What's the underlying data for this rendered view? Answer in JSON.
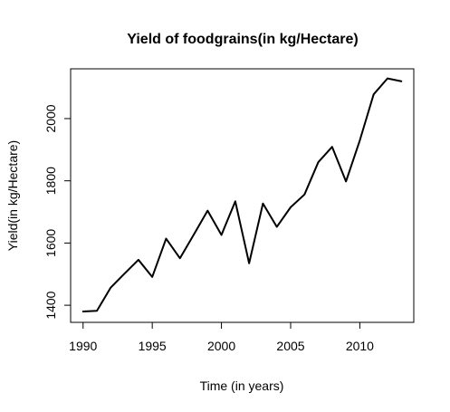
{
  "chart_data": {
    "type": "line",
    "title": "Yield of foodgrains(in kg/Hectare)",
    "xlabel": "Time (in years)",
    "ylabel": "Yield(in kg/Hectare)",
    "xlim": [
      1989.1,
      2013.9
    ],
    "ylim": [
      1345,
      2160
    ],
    "xticks": [
      1990,
      1995,
      2000,
      2005,
      2010
    ],
    "yticks": [
      1400,
      1600,
      1800,
      2000
    ],
    "grid": false,
    "legend": "none",
    "series": [
      {
        "color": "#000000",
        "x": [
          1990,
          1991,
          1992,
          1993,
          1994,
          1995,
          1996,
          1997,
          1998,
          1999,
          2000,
          2001,
          2002,
          2003,
          2004,
          2005,
          2006,
          2007,
          2008,
          2009,
          2010,
          2011,
          2012,
          2013
        ],
        "y": [
          1380,
          1382,
          1457,
          1502,
          1546,
          1491,
          1614,
          1551,
          1627,
          1704,
          1626,
          1734,
          1535,
          1727,
          1652,
          1715,
          1756,
          1860,
          1909,
          1798,
          1930,
          2078,
          2129,
          2120
        ]
      }
    ]
  }
}
